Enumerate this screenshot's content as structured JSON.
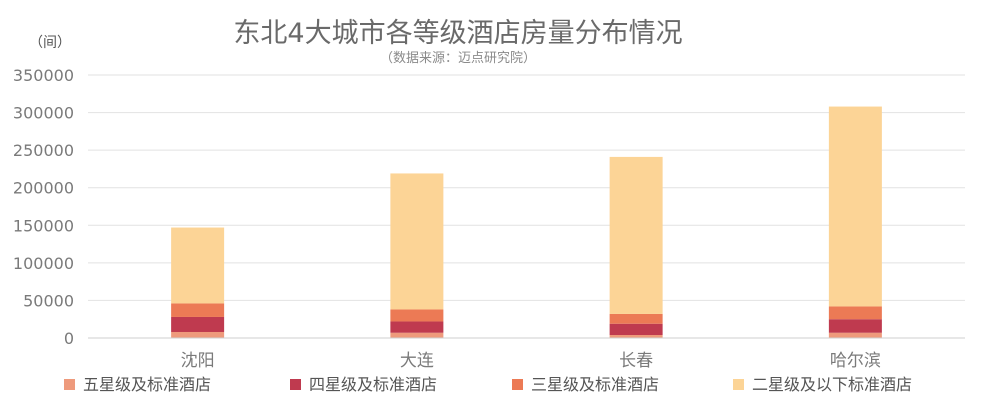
{
  "chart_data": {
    "type": "bar",
    "stacked": true,
    "title": "东北4大城市各等级酒店房量分布情况",
    "subtitle": "（数据来源：迈点研究院）",
    "unit": "（间）",
    "categories": [
      "沈阳",
      "大连",
      "长春",
      "哈尔滨"
    ],
    "ylim": [
      0,
      350000
    ],
    "yticks": [
      0,
      50000,
      100000,
      150000,
      200000,
      250000,
      300000,
      350000
    ],
    "grid": true,
    "legend_position": "bottom",
    "series": [
      {
        "name": "五星级及标准酒店",
        "color": "#EE9A7C",
        "values": [
          8000,
          7000,
          4000,
          7000
        ]
      },
      {
        "name": "四星级及标准酒店",
        "color": "#BF3A4F",
        "values": [
          20000,
          15000,
          15000,
          18000
        ]
      },
      {
        "name": "三星级及标准酒店",
        "color": "#EC7A55",
        "values": [
          18000,
          16000,
          13000,
          17000
        ]
      },
      {
        "name": "二星级及以下标准酒店",
        "color": "#FCD496",
        "values": [
          101000,
          181000,
          209000,
          266000
        ]
      }
    ]
  }
}
